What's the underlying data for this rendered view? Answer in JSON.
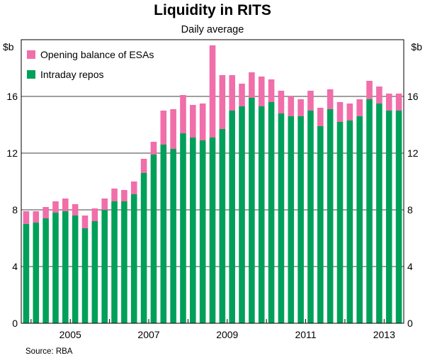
{
  "chart_data": {
    "type": "bar",
    "stacked": true,
    "title": "Liquidity in RITS",
    "subtitle": "Daily average",
    "unit_left": "$b",
    "unit_right": "$b",
    "ylim": [
      0,
      20
    ],
    "yticks": [
      0,
      4,
      8,
      12,
      16
    ],
    "xtick_labels": [
      "2005",
      "2007",
      "2009",
      "2011",
      "2013"
    ],
    "source": "Source: RBA",
    "legend_position": "top-left",
    "categories": [
      "2003Q4",
      "2004Q1",
      "2004Q2",
      "2004Q3",
      "2004Q4",
      "2005Q1",
      "2005Q2",
      "2005Q3",
      "2005Q4",
      "2006Q1",
      "2006Q2",
      "2006Q3",
      "2006Q4",
      "2007Q1",
      "2007Q2",
      "2007Q3",
      "2007Q4",
      "2008Q1",
      "2008Q2",
      "2008Q3",
      "2008Q4",
      "2009Q1",
      "2009Q2",
      "2009Q3",
      "2009Q4",
      "2010Q1",
      "2010Q2",
      "2010Q3",
      "2010Q4",
      "2011Q1",
      "2011Q2",
      "2011Q3",
      "2011Q4",
      "2012Q1",
      "2012Q2",
      "2012Q3",
      "2012Q4",
      "2013Q1",
      "2013Q2"
    ],
    "series": [
      {
        "name": "Intraday repos",
        "color": "#00a05a",
        "values": [
          7.0,
          7.1,
          7.4,
          7.8,
          7.9,
          7.6,
          6.7,
          7.2,
          8.0,
          8.6,
          8.6,
          9.1,
          10.6,
          11.9,
          12.6,
          12.3,
          13.4,
          13.1,
          12.9,
          13.1,
          13.7,
          15.0,
          15.3,
          15.9,
          15.3,
          15.6,
          14.8,
          14.6,
          14.6,
          15.0,
          13.9,
          15.1,
          14.2,
          14.3,
          14.6,
          15.8,
          15.5,
          15.0,
          15.0
        ]
      },
      {
        "name": "Opening balance of ESAs",
        "color": "#f06eaa",
        "values": [
          0.9,
          0.8,
          0.8,
          0.8,
          0.9,
          0.8,
          0.9,
          0.9,
          0.8,
          0.9,
          0.8,
          0.9,
          1.0,
          0.9,
          2.4,
          2.8,
          2.7,
          2.3,
          2.6,
          6.5,
          3.8,
          2.5,
          1.6,
          1.8,
          2.1,
          1.6,
          1.6,
          1.4,
          1.2,
          1.4,
          1.3,
          1.4,
          1.4,
          1.2,
          1.2,
          1.3,
          1.2,
          1.2,
          1.2
        ]
      }
    ],
    "legend": [
      "Opening balance of ESAs",
      "Intraday repos"
    ]
  }
}
